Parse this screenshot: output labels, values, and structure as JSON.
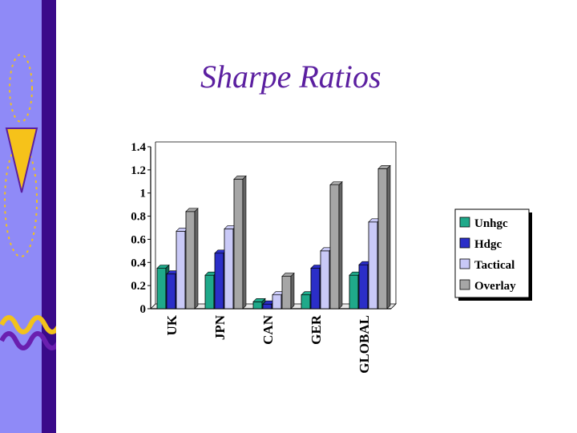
{
  "slide": {
    "title": "Sharpe Ratios"
  },
  "colors": {
    "sidebar": "#8f8af7",
    "title": "#5b1fa0"
  },
  "chart_data": {
    "type": "bar",
    "categories": [
      "UK",
      "JPN",
      "CAN",
      "GER",
      "GLOBAL"
    ],
    "series": [
      {
        "name": "Unhgc",
        "color": "#1fa98a",
        "values": [
          0.35,
          0.29,
          0.06,
          0.12,
          0.29
        ]
      },
      {
        "name": "Hdgc",
        "color": "#2b2ec8",
        "values": [
          0.3,
          0.48,
          0.04,
          0.35,
          0.38
        ]
      },
      {
        "name": "Tactical",
        "color": "#c9c9f7",
        "values": [
          0.67,
          0.69,
          0.12,
          0.5,
          0.75
        ]
      },
      {
        "name": "Overlay",
        "color": "#a6a6a6",
        "values": [
          0.84,
          1.12,
          0.28,
          1.07,
          1.21
        ]
      }
    ],
    "ylim": [
      0,
      1.4
    ],
    "yticks": [
      "0",
      "0.2",
      "0.4",
      "0.6",
      "0.8",
      "1",
      "1.2",
      "1.4"
    ],
    "grid": false,
    "legend": "right"
  }
}
